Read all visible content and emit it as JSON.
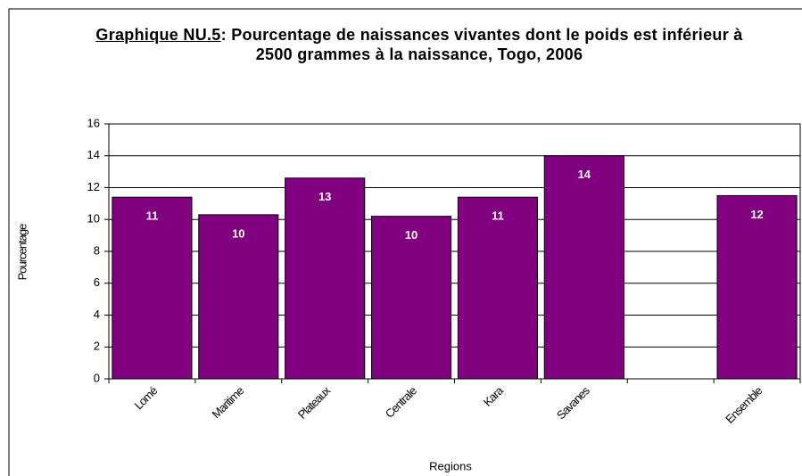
{
  "chart_data": {
    "type": "bar",
    "title_prefix": "Graphique NU.5",
    "title": ": Pourcentage de naissances vivantes dont le poids est inférieur à 2500 grammes à la naissance, Togo, 2006",
    "x_label": "Regions",
    "y_label": "Pourcentage",
    "categories": [
      "Lomé",
      "Maritime",
      "Plateaux",
      "Centrale",
      "Kara",
      "Savanes",
      null,
      "Ensemble"
    ],
    "values": [
      11.4,
      10.3,
      12.6,
      10.2,
      11.4,
      14.0,
      null,
      11.5
    ],
    "value_labels": [
      "11",
      "10",
      "13",
      "10",
      "11",
      "14",
      null,
      "12"
    ],
    "color": "#800080",
    "ylim": [
      0,
      16
    ],
    "yticks": [
      0,
      2,
      4,
      6,
      8,
      10,
      12,
      14,
      16
    ],
    "grid": true
  }
}
